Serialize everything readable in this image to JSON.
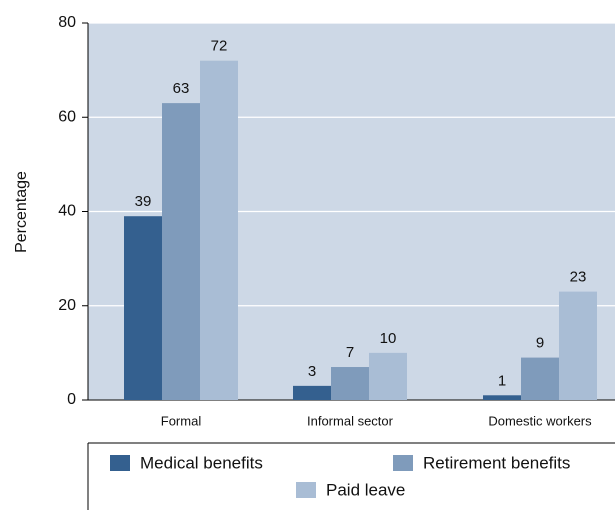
{
  "chart_data": {
    "type": "bar",
    "categories": [
      "Formal",
      "Informal sector",
      "Domestic workers"
    ],
    "series": [
      {
        "name": "Medical benefits",
        "color": "#34608f",
        "values": [
          39,
          3,
          1
        ]
      },
      {
        "name": "Retirement benefits",
        "color": "#7f9bbb",
        "values": [
          63,
          7,
          9
        ]
      },
      {
        "name": "Paid leave",
        "color": "#a9bdd5",
        "values": [
          72,
          10,
          23
        ]
      }
    ],
    "y_label": "Percentage",
    "ylim": [
      0,
      80
    ],
    "yticks": [
      0,
      20,
      40,
      60,
      80
    ],
    "grid": true,
    "plot_background": "#cdd8e6",
    "legend": "bottom"
  }
}
